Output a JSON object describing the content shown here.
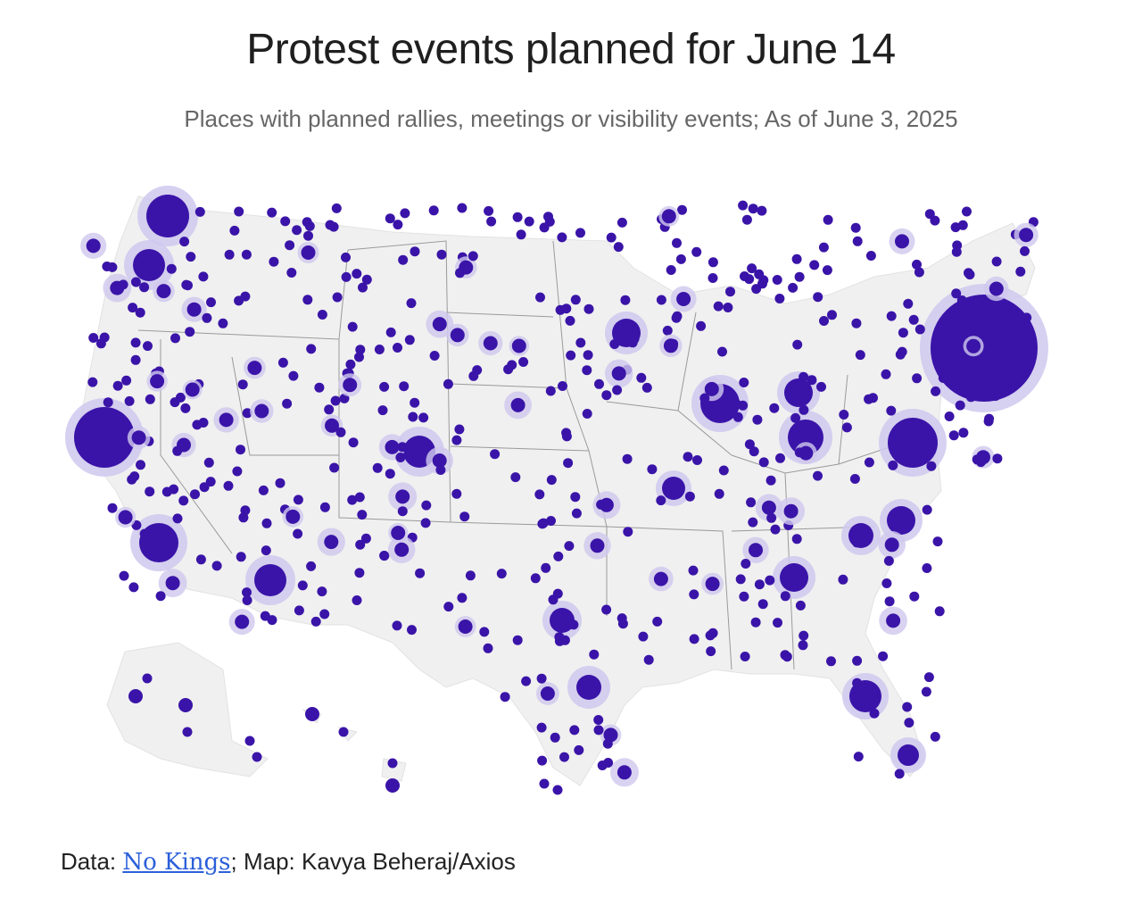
{
  "header": {
    "title": "Protest events planned for June 14",
    "subtitle": "Places with planned rallies, meetings or visibility events; As of June 3, 2025"
  },
  "credit": {
    "prefix": "Data: ",
    "source_link": "No Kings",
    "suffix": "; Map: Kavya Beheraj/Axios"
  },
  "map": {
    "name": "United States",
    "colors": {
      "land": "#f0f0f0",
      "border": "#9a9a9a",
      "dot": "#3a14a8",
      "halo": "#cfc8ee",
      "halo_mid": "#9b8ad9"
    }
  }
}
